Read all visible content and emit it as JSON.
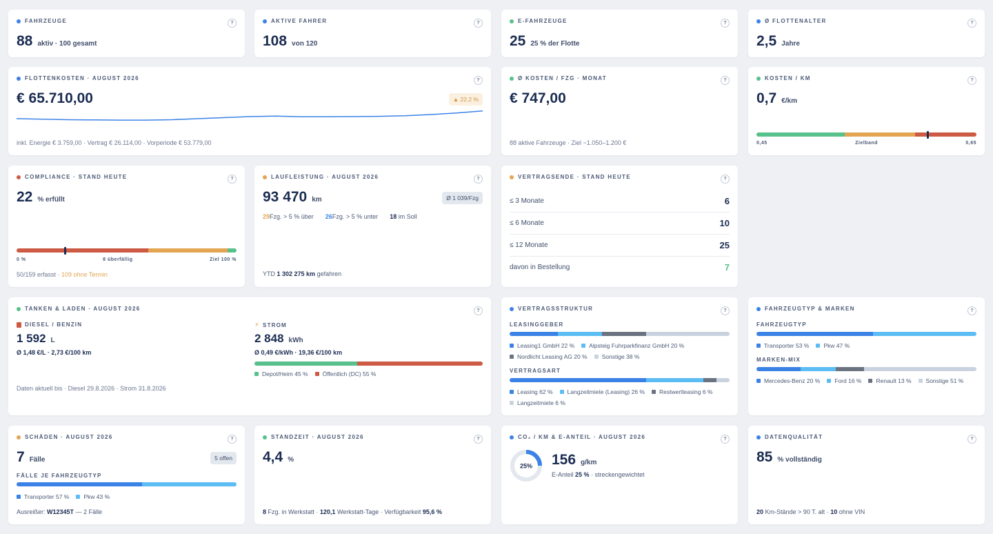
{
  "colors": {
    "blue": "#3b82e6",
    "lightblue": "#5cbcf4",
    "green": "#57c08b",
    "orange": "#e3a552",
    "red": "#cd5a43",
    "gray": "#6b7280",
    "lightgray": "#c9d3e0"
  },
  "fahrzeuge": {
    "title": "Fahrzeuge",
    "value": "88",
    "detail": "aktiv · 100 gesamt",
    "help": "?"
  },
  "fahrer": {
    "title": "Aktive Fahrer",
    "value": "108",
    "detail": "von 120",
    "help": "?"
  },
  "efz": {
    "title": "E-Fahrzeuge",
    "value": "25",
    "detail": "25 % der Flotte",
    "help": "?"
  },
  "alter": {
    "title": "Ø Flottenalter",
    "value": "2,5",
    "detail": "Jahre",
    "help": "?"
  },
  "kosten": {
    "title": "Flottenkosten · August 2026",
    "value": "€ 65.710,00",
    "trend": "▲ 22.2 %",
    "footer": "inkl. Energie € 3.759,00 · Vertrag € 26.114,00 · Vorperiode € 53.779,00",
    "help": "?",
    "chart_data": {
      "type": "line",
      "values": [
        10,
        9.5,
        9,
        8.8,
        8.6,
        8.6,
        9,
        10,
        11,
        12,
        12.5,
        11.8,
        11.8,
        12,
        12.3,
        12.8,
        14,
        15.5,
        17.5
      ],
      "title": "",
      "xlabel": "",
      "ylabel": ""
    }
  },
  "kfzm": {
    "title": "Ø Kosten / Fzg · Monat",
    "value": "€ 747,00",
    "footer": "88 aktive Fahrzeuge · Ziel ~1.050–1.200 €",
    "help": "?"
  },
  "kkm": {
    "title": "Kosten / km",
    "value": "0,7",
    "unit": "€/km",
    "min": "0,45",
    "mid": "Zielband",
    "max": "0,65",
    "marker_fraction": 0.78,
    "help": "?"
  },
  "compliance": {
    "title": "Compliance · Stand heute",
    "value": "22",
    "unit": "% erfüllt",
    "s_left": "0 %",
    "s_mid": "8 überfällig",
    "s_right": "Ziel 100 %",
    "foot_a": "50/159 erfasst",
    "foot_sep": " · ",
    "foot_b": "109 ohne Termin",
    "marker_fraction": 0.22,
    "help": "?"
  },
  "lauf": {
    "title": "Laufleistung · August 2026",
    "value": "93 470",
    "unit": "km",
    "badge": "Ø 1 039/Fzg",
    "n_over": "29",
    "t_over": "Fzg. > 5 % über",
    "n_under": "26",
    "t_under": "Fzg. > 5 % unter",
    "n_soll": "18",
    "t_soll": "im Soll",
    "ytd_label": "YTD",
    "ytd_value": "1 302 275 km",
    "ytd_suffix": "gefahren",
    "help": "?"
  },
  "vertragsende": {
    "title": "Vertragsende · Stand heute",
    "help": "?",
    "rows": [
      {
        "label": "≤ 3 Monate",
        "value": "6"
      },
      {
        "label": "≤ 6 Monate",
        "value": "10"
      },
      {
        "label": "≤ 12 Monate",
        "value": "25"
      },
      {
        "label": "davon in Bestellung",
        "value": "7"
      }
    ]
  },
  "tanken": {
    "title": "Tanken & Laden · August 2026",
    "help": "?",
    "diesel_title": "Diesel / Benzin",
    "diesel_icon": "fuel-pump-icon",
    "diesel_value": "1 592",
    "diesel_unit": "L",
    "diesel_detail": "Ø 1,48 €/L · 2,73 €/100 km",
    "strom_title": "Strom",
    "strom_icon": "lightning-icon",
    "strom_value": "2 848",
    "strom_unit": "kWh",
    "strom_detail": "Ø 0,49 €/kWh · 19,36 €/100 km",
    "depot": "Depot/Heim 45 %",
    "oeff": "Öffentlich (DC) 55 %",
    "depot_share": 45,
    "oeff_share": 55,
    "footer": "Daten aktuell bis · Diesel 29.8.2026 · Strom 31.8.2026"
  },
  "struktur": {
    "title": "Vertragsstruktur",
    "help": "?",
    "lg_title": "Leasinggeber",
    "lg": [
      {
        "label": "Leasing1 GmbH 22 %",
        "share": 22,
        "color": "#3b82e6"
      },
      {
        "label": "Alpsteig Fuhrparkfinanz GmbH 20 %",
        "share": 20,
        "color": "#5cbcf4"
      },
      {
        "label": "Nordlicht Leasing AG 20 %",
        "share": 20,
        "color": "#6b7280"
      },
      {
        "label": "Sonstige 38 %",
        "share": 38,
        "color": "#c9d3e0"
      }
    ],
    "va_title": "Vertragsart",
    "va": [
      {
        "label": "Leasing 62 %",
        "share": 62,
        "color": "#3b82e6"
      },
      {
        "label": "Langzeitmiete (Leasing) 26 %",
        "share": 26,
        "color": "#5cbcf4"
      },
      {
        "label": "Restwertleasing 6 %",
        "share": 6,
        "color": "#6b7280"
      },
      {
        "label": "Langzeitmiete 6 %",
        "share": 6,
        "color": "#c9d3e0"
      }
    ]
  },
  "typ": {
    "title": "Fahrzeugtyp & Marken",
    "help": "?",
    "ft_title": "Fahrzeugtyp",
    "ft": [
      {
        "label": "Transporter 53 %",
        "share": 53,
        "color": "#3b82e6"
      },
      {
        "label": "Pkw 47 %",
        "share": 47,
        "color": "#5cbcf4"
      }
    ],
    "mm_title": "Marken-Mix",
    "mm": [
      {
        "label": "Mercedes-Benz 20 %",
        "share": 20,
        "color": "#3b82e6"
      },
      {
        "label": "Ford 16 %",
        "share": 16,
        "color": "#5cbcf4"
      },
      {
        "label": "Renault 13 %",
        "share": 13,
        "color": "#6b7280"
      },
      {
        "label": "Sonstige 51 %",
        "share": 51,
        "color": "#c9d3e0"
      }
    ]
  },
  "schaeden": {
    "title": "Schäden · August 2026",
    "value": "7",
    "unit": "Fälle",
    "badge": "5 offen",
    "sub": "Fälle je Fahrzeugtyp",
    "help": "?",
    "split": [
      {
        "label": "Transporter 57 %",
        "share": 57,
        "color": "#3b82e6"
      },
      {
        "label": "Pkw 43 %",
        "share": 43,
        "color": "#5cbcf4"
      }
    ],
    "foot_a": "Ausreißer:",
    "foot_b": "W12345T",
    "foot_c": "— 2 Fälle"
  },
  "standzeit": {
    "title": "Standzeit · August 2026",
    "value": "4,4",
    "unit": "%",
    "help": "?",
    "n1": "8",
    "t1": "Fzg. in Werkstatt ·",
    "n2": "120,1",
    "t2": "Werkstatt-Tage · Verfügbarkeit",
    "n3": "95,6 %"
  },
  "co2": {
    "title": "CO₂ / km & E-Anteil · August 2026",
    "help": "?",
    "donut": "25%",
    "donut_fraction": 0.25,
    "value": "156",
    "unit": "g/km",
    "e_label": "E-Anteil",
    "e_value": "25 %",
    "e_suffix": "· streckengewichtet"
  },
  "dq": {
    "title": "Datenqualität",
    "value": "85",
    "unit": "% vollständig",
    "help": "?",
    "n1": "20",
    "t1": "Km-Stände > 90 T. alt ·",
    "n2": "10",
    "t2": "ohne VIN"
  }
}
